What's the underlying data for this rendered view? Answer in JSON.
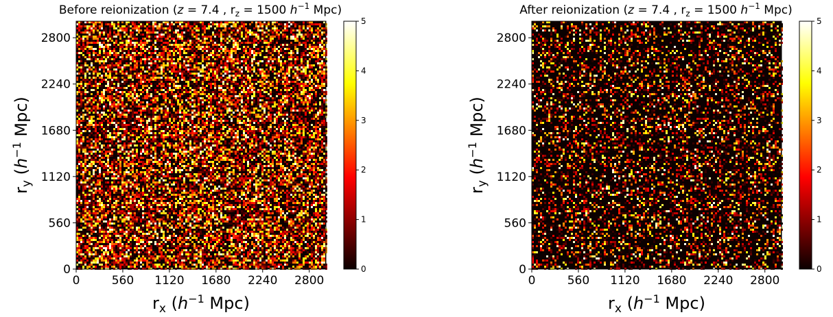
{
  "chart_data": [
    {
      "type": "heatmap",
      "title_main": "Before reionization (",
      "title_z": "z",
      "title_zval": " = 7.4 , r",
      "title_sub": "z",
      "title_rval": " = 1500 ",
      "title_h": "h",
      "title_exp": "−1",
      "title_end": " Mpc)",
      "xlabel_r": "r",
      "xlabel_sub": "x",
      "xlabel_open": " (",
      "xlabel_h": "h",
      "xlabel_exp": "−1",
      "xlabel_unit": " Mpc)",
      "ylabel_r": "r",
      "ylabel_sub": "y",
      "ylabel_open": " (",
      "ylabel_h": "h",
      "ylabel_exp": "−1",
      "ylabel_unit": " Mpc)",
      "xticks": [
        "0",
        "560",
        "1120",
        "1680",
        "2240",
        "2800"
      ],
      "yticks": [
        "0",
        "560",
        "1120",
        "1680",
        "2240",
        "2800"
      ],
      "xlim": [
        0,
        3000
      ],
      "ylim": [
        0,
        3000
      ],
      "colormap": "hot",
      "colorbar_ticks": [
        "0",
        "1",
        "2",
        "3",
        "4",
        "5"
      ],
      "clim": [
        0,
        5
      ],
      "field_description_density": "dense"
    },
    {
      "type": "heatmap",
      "title_main": "After reionization (",
      "title_z": "z",
      "title_zval": " = 7.4 , r",
      "title_sub": "z",
      "title_rval": " = 1500 ",
      "title_h": "h",
      "title_exp": "−1",
      "title_end": " Mpc)",
      "xlabel_r": "r",
      "xlabel_sub": "x",
      "xlabel_open": " (",
      "xlabel_h": "h",
      "xlabel_exp": "−1",
      "xlabel_unit": " Mpc)",
      "ylabel_r": "r",
      "ylabel_sub": "y",
      "ylabel_open": " (",
      "ylabel_h": "h",
      "ylabel_exp": "−1",
      "ylabel_unit": " Mpc)",
      "xticks": [
        "0",
        "560",
        "1120",
        "1680",
        "2240",
        "2800"
      ],
      "yticks": [
        "0",
        "560",
        "1120",
        "1680",
        "2240",
        "2800"
      ],
      "xlim": [
        0,
        3000
      ],
      "ylim": [
        0,
        3000
      ],
      "colormap": "hot",
      "colorbar_ticks": [
        "0",
        "1",
        "2",
        "3",
        "4",
        "5"
      ],
      "clim": [
        0,
        5
      ],
      "field_description_density": "sparse"
    }
  ]
}
